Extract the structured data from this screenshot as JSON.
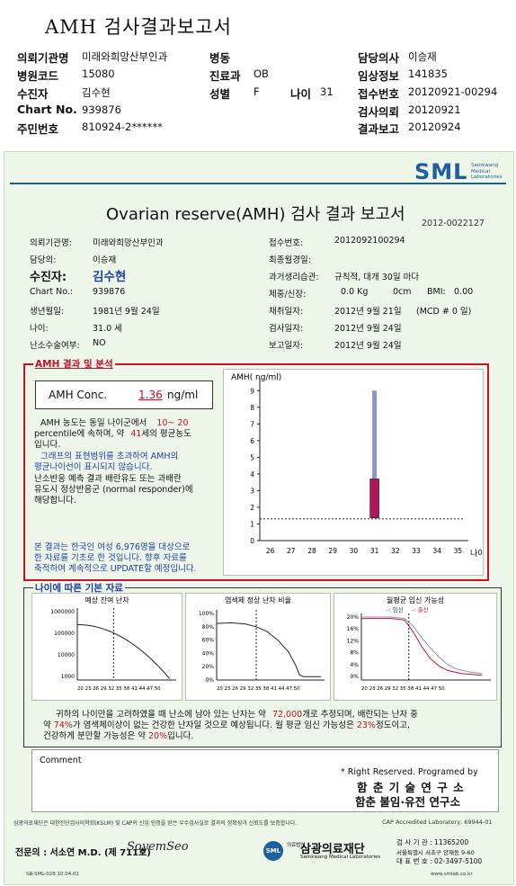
{
  "title": "AMH 검사결과보고서",
  "header": {
    "inst_label": "의뢰기관명",
    "inst_value": "미래와희망산부인과",
    "ward_label": "병동",
    "doctor_label": "담당의사",
    "doctor_value": "이승재",
    "hospcode_label": "병원코드",
    "hospcode_value": "15080",
    "dept_label": "진료과",
    "dept_value": "OB",
    "clinical_label": "임상정보",
    "clinical_value": "141835",
    "patient_label": "수진자",
    "patient_value": "김수현",
    "sex_label": "성별",
    "sex_value": "F",
    "age_label": "나이",
    "age_value": "31",
    "receipt_label": "접수번호",
    "receipt_value": "20120921-00294",
    "chart_label": "Chart No.",
    "chart_value": "939876",
    "request_label": "검사의뢰",
    "request_value": "20120921",
    "rrn_label": "주민번호",
    "rrn_value": "810924-2******",
    "result_label": "결과보고",
    "result_value": "20120924"
  },
  "report": {
    "logo": "SML",
    "logo_sub1": "Samkwang",
    "logo_sub2": "Medical",
    "logo_sub3": "Laboratories",
    "title": "Ovarian reserve(AMH) 검사 결과 보고서",
    "report_no": "2012-0022127",
    "fields": {
      "inst_label": "의뢰기관명:",
      "inst_value": "미래와희망산부인과",
      "receipt_label": "접수번호:",
      "receipt_value": "2012092100294",
      "doctor_label": "담당의:",
      "doctor_value": "이승재",
      "lastmens_label": "최종월경일:",
      "lastmens_value": "",
      "patient_label": "수진자:",
      "patient_value": "김수현",
      "history_label": "과거생리습관:",
      "history_value": "규칙적, 대개 30일 마다",
      "chart_label": "Chart No.:",
      "chart_value": "939876",
      "body_label": "체중/신장:",
      "weight": "0.0 Kg",
      "height": "0cm",
      "bmi_label": "BMI:",
      "bmi": "0.00",
      "birth_label": "생년월일:",
      "birth_value": "1981년 9월 24일",
      "collect_label": "채취일자:",
      "collect_value": "2012년 9월 21일",
      "mcd": "(MCD # 0 일)",
      "age_label": "나이:",
      "age_value": "31.0 세",
      "exam_label": "검사일자:",
      "exam_value": "2012년 9월 24일",
      "surgery_label": "난소수술여부:",
      "surgery_value": "NO",
      "reportdate_label": "보고일자:",
      "reportdate_value": "2012년 9월 24일"
    },
    "amh_section_title": "AMH 결과 및 분석",
    "amh_conc_label": "AMH Conc.",
    "amh_conc_value": "1.36",
    "amh_conc_unit": "ng/ml",
    "analysis_1a": "AMH 농도는 동일 나이군에서",
    "analysis_1b": "10~ 20",
    "analysis_1c": "percentile에 속하며, 약",
    "analysis_1d": "41",
    "analysis_1e": "세의 평균농도",
    "analysis_1f": "입니다.",
    "analysis_2a": "그래프의 표현범위를 초과하여 AMH의",
    "analysis_2b": "평균나이선이 표시되지 않습니다.",
    "analysis_3a": "난소반응 예측 결과 배란유도 또는 과배란",
    "analysis_3b": "유도시 정상반응군 (normal responder)에",
    "analysis_3c": "해당합니다.",
    "note_1": "본 결과는 한국인 여성 6,976명을 대상으로",
    "note_2": "한 자료를 기초로 한 것입니다. 향후 자료를",
    "note_3": "축적하여 계속적으로 UPDATE할 예정입니다.",
    "basic_section_title": "나이에 따른 기본 자료",
    "mini1_title": "예상 잔여 난자",
    "mini2_title": "염색체 정상 난자 비율",
    "mini3_title": "월평균 임신 가능성",
    "mini3_legend_a": "-: 임신",
    "mini3_legend_b": "-: 출산",
    "summary_1a": "귀하의 나이만을 고려하였을 때 난소에 남아 있는 난자는 약",
    "summary_1b": "72,000",
    "summary_1c": "개로 추정되며, 배란되는 난자 중",
    "summary_2a": "약",
    "summary_2b": "74%",
    "summary_2c": "가 염색체이상이 없는 건강한 난자일 것으로 예상됩니다. 월 평균 임신 가능성은",
    "summary_2d": "23%",
    "summary_2e": "정도이고,",
    "summary_3a": "건강하게 분만할 가능성은 약",
    "summary_3b": "20%",
    "summary_3c": "입니다.",
    "comment_label": "Comment",
    "rights": "* Right Reserved. Programed by",
    "org1": "함 춘 기 술 연 구 소",
    "org2": "함춘 불임·유전 연구소",
    "footnote": "삼광의료재단은 대한진단검사의학회(KSLM) 및 CAP의 신임 인증을 받은 우수검사실로 결과의 정확성과 신뢰도를 보증합니다.",
    "cap": "CAP Accredited Laboratory, 69944-01",
    "specialist": "전문의 : 서소연 M.D. (제 711호)",
    "signature": "SoyemSeo",
    "foundation": "삼광의료재단",
    "foundation_prefix": "의료법인",
    "foundation_en": "Samkwang Medical Laboratories",
    "bizno": "검 사 기 관 : 11365200",
    "address": "서울특별시 서초구 양재동 9-60",
    "phone": "대 표 번 호 : 02-3497-5100",
    "form_no": "SR-SML-028 10.04.01",
    "website": "www.smlab.co.kr"
  },
  "chart_data": [
    {
      "type": "bar",
      "ylabel": "AMH( ng/ml)",
      "xlabel": "나이",
      "x": [
        26,
        27,
        28,
        29,
        30,
        31,
        32,
        33,
        34,
        35
      ],
      "yticks": [
        0,
        1,
        2,
        3,
        4,
        5,
        6,
        7,
        8,
        9
      ],
      "ylim": [
        0,
        9.5
      ],
      "bar_x": 31,
      "range_low": 1.36,
      "range_high": 3.7,
      "upper_whisker_top": 9.0,
      "reference_line": 1.3,
      "colors": {
        "bar": "#b0155a",
        "range": "#8c96c8"
      }
    },
    {
      "type": "line",
      "title": "예상 잔여 난자",
      "yscale": "log",
      "yticks": [
        "100000",
        "10000",
        "1000"
      ],
      "yticks_top": "1000000",
      "x": [
        20,
        23,
        26,
        29,
        32,
        35,
        38,
        41,
        44,
        47,
        50
      ],
      "xticks": "20 23 26 29 32 35 38 41 44 47 50",
      "marker_x": 31
    },
    {
      "type": "line",
      "title": "염색체 정상 난자 비율",
      "yticks": [
        "100%",
        "80%",
        "60%",
        "40%",
        "20%",
        "0%"
      ],
      "xticks": "20 23 26 29 32 35 38 41 44 47 50",
      "marker_x": 31
    },
    {
      "type": "line",
      "title": "월평균 임신 가능성",
      "yticks": [
        "20%",
        "16%",
        "12%",
        "8%",
        "4%",
        "0%"
      ],
      "xticks": "20 23 26 29 32 35 38 41 44 47 50",
      "series": [
        {
          "name": "임신"
        },
        {
          "name": "출산"
        }
      ],
      "marker_x": 31
    }
  ]
}
